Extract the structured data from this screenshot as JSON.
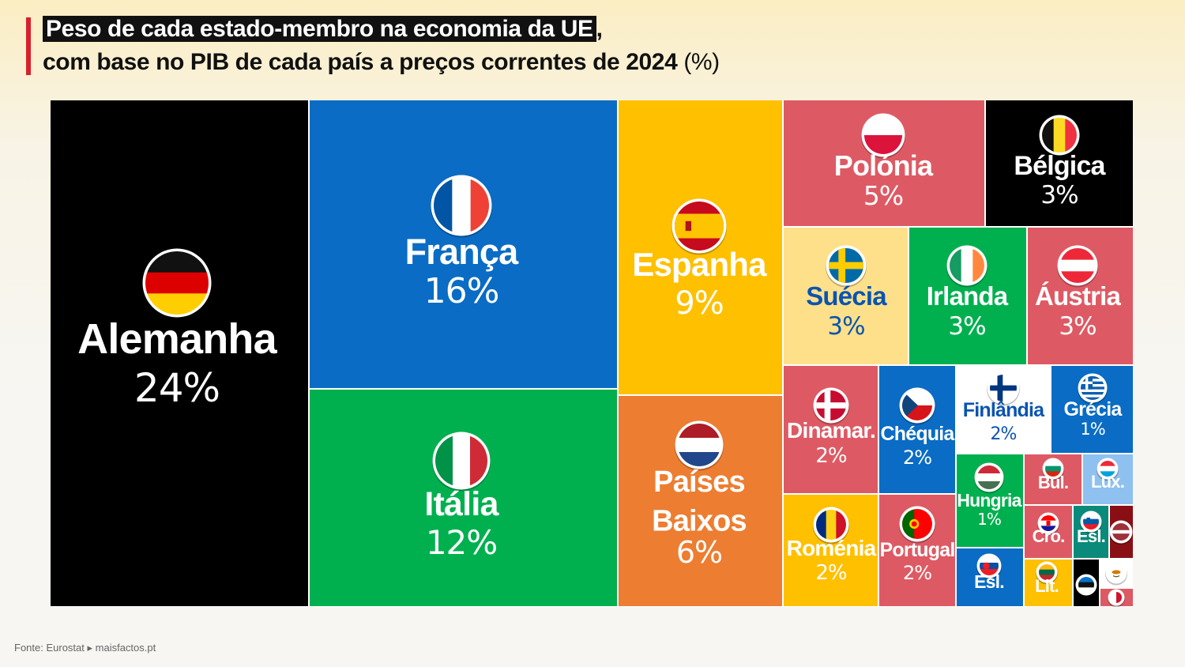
{
  "title": {
    "line1_highlight": "Peso de cada estado-membro na economia da UE",
    "line1_rest": ",",
    "line2": "com base no PIB de cada país a preços correntes de 2024",
    "line2_unit": "(%)"
  },
  "source": "Fonte: Eurostat ▸ maisfactos.pt",
  "chart_data": {
    "type": "treemap",
    "title": "Peso de cada estado-membro na economia da UE, com base no PIB de cada país a preços correntes de 2024 (%)",
    "unit": "%",
    "items": [
      {
        "name": "Alemanha",
        "value": 24,
        "label": "24%",
        "color": "#000000",
        "flag": "flag-germany-icon"
      },
      {
        "name": "França",
        "value": 16,
        "label": "16%",
        "color": "#0a6cc4",
        "flag": "flag-france-icon"
      },
      {
        "name": "Itália",
        "value": 12,
        "label": "12%",
        "color": "#00b04f",
        "flag": "flag-italy-icon"
      },
      {
        "name": "Espanha",
        "value": 9,
        "label": "9%",
        "color": "#ffc000",
        "flag": "flag-spain-icon"
      },
      {
        "name": "Países Baixos",
        "value": 6,
        "label": "6%",
        "color": "#ed7d31",
        "flag": "flag-netherlands-icon"
      },
      {
        "name": "Polónia",
        "value": 5,
        "label": "5%",
        "color": "#dd5a64",
        "flag": "flag-poland-icon"
      },
      {
        "name": "Bélgica",
        "value": 3,
        "label": "3%",
        "color": "#000000",
        "flag": "flag-belgium-icon"
      },
      {
        "name": "Suécia",
        "value": 3,
        "label": "3%",
        "color": "#ffe08a",
        "flag": "flag-sweden-icon"
      },
      {
        "name": "Irlanda",
        "value": 3,
        "label": "3%",
        "color": "#00b04f",
        "flag": "flag-ireland-icon"
      },
      {
        "name": "Áustria",
        "value": 3,
        "label": "3%",
        "color": "#dd5a64",
        "flag": "flag-austria-icon"
      },
      {
        "name": "Dinamar.",
        "value": 2,
        "label": "2%",
        "color": "#dd5a64",
        "flag": "flag-denmark-icon"
      },
      {
        "name": "Chéquia",
        "value": 2,
        "label": "2%",
        "color": "#0a6cc4",
        "flag": "flag-czechia-icon"
      },
      {
        "name": "Finlândia",
        "value": 2,
        "label": "2%",
        "color": "#ffffff",
        "flag": "flag-finland-icon"
      },
      {
        "name": "Grécia",
        "value": 1,
        "label": "1%",
        "color": "#0a6cc4",
        "flag": "flag-greece-icon"
      },
      {
        "name": "Roménia",
        "value": 2,
        "label": "2%",
        "color": "#ffc000",
        "flag": "flag-romania-icon"
      },
      {
        "name": "Portugal",
        "value": 2,
        "label": "2%",
        "color": "#dd5a64",
        "flag": "flag-portugal-icon"
      },
      {
        "name": "Hungria",
        "value": 1,
        "label": "1%",
        "color": "#00b04f",
        "flag": "flag-hungary-icon"
      },
      {
        "name": "Esl.",
        "value": null,
        "label": "",
        "color": "#0a6cc4",
        "flag": "flag-slovakia-icon"
      },
      {
        "name": "Bul.",
        "value": null,
        "label": "",
        "color": "#dd5a64",
        "flag": "flag-bulgaria-icon"
      },
      {
        "name": "Lux.",
        "value": null,
        "label": "",
        "color": "#8ec1ef",
        "flag": "flag-luxembourg-icon"
      },
      {
        "name": "Cro.",
        "value": null,
        "label": "",
        "color": "#dd5a64",
        "flag": "flag-croatia-icon"
      },
      {
        "name": "Esl.",
        "value": null,
        "label": "",
        "color": "#0a8a7a",
        "flag": "flag-slovenia-icon"
      },
      {
        "name": "",
        "value": null,
        "label": "",
        "color": "#8a0f14",
        "flag": "flag-latvia-icon"
      },
      {
        "name": "Lit.",
        "value": null,
        "label": "",
        "color": "#ffc000",
        "flag": "flag-lithuania-icon"
      },
      {
        "name": "",
        "value": null,
        "label": "",
        "color": "#000000",
        "flag": "flag-estonia-icon"
      },
      {
        "name": "",
        "value": null,
        "label": "",
        "color": "#ffffff",
        "flag": "flag-cyprus-icon"
      },
      {
        "name": "",
        "value": null,
        "label": "",
        "color": "#dd5a64",
        "flag": "flag-malta-icon"
      }
    ]
  }
}
